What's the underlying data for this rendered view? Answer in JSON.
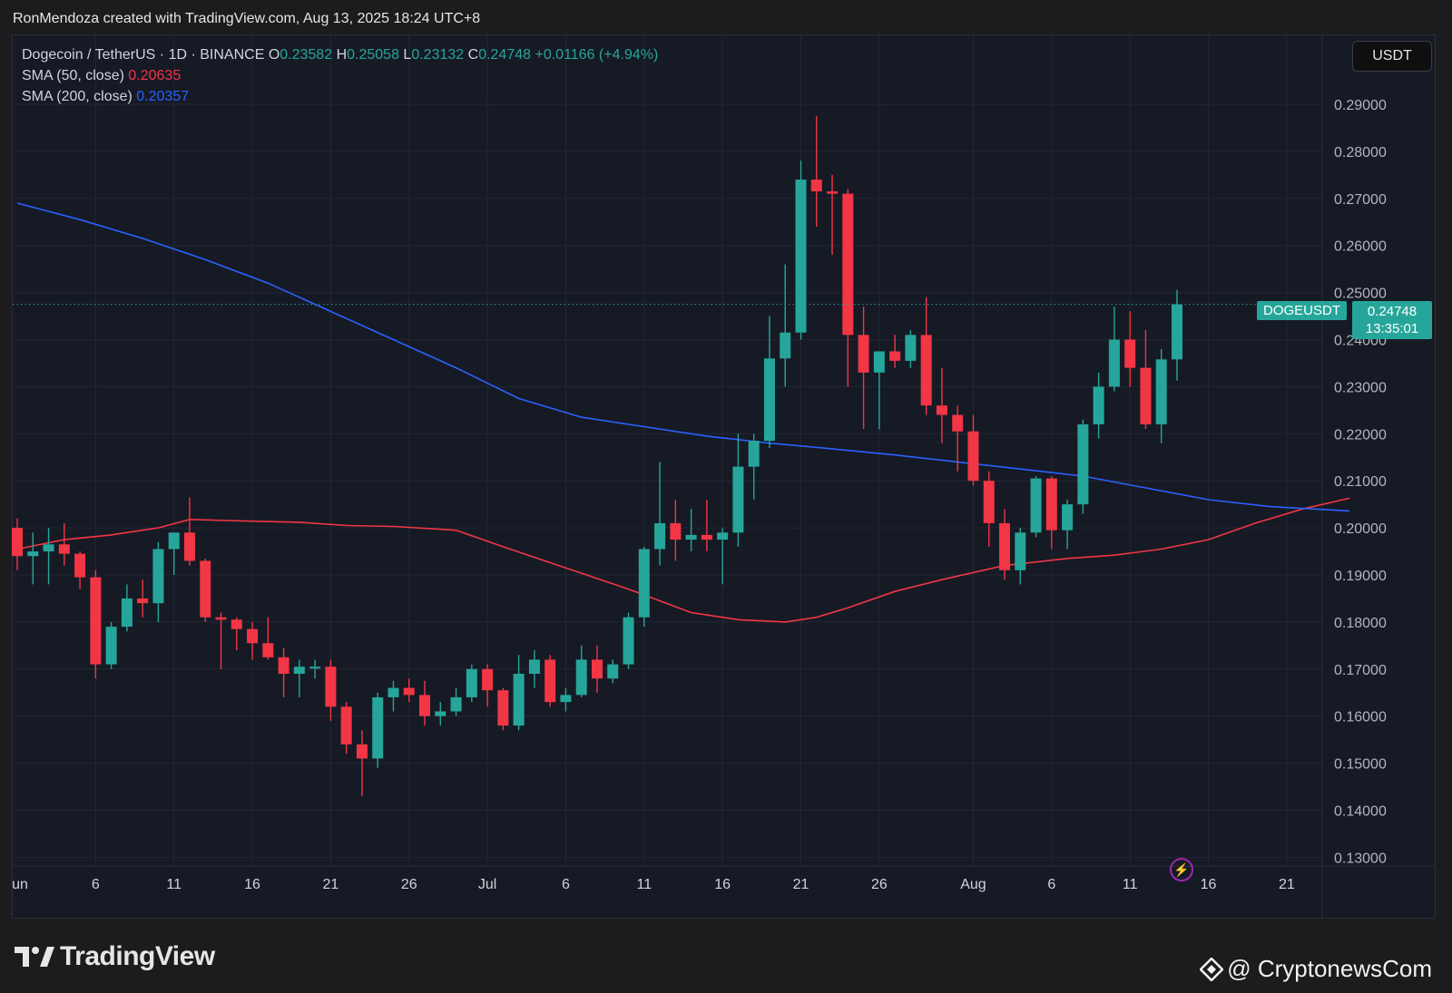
{
  "header": {
    "attribution": "RonMendoza created with TradingView.com, Aug 13, 2025 18:24 UTC+8"
  },
  "legend": {
    "symbol": "Dogecoin / TetherUS · 1D · BINANCE",
    "o_label": "O",
    "o_value": "0.23582",
    "h_label": "H",
    "h_value": "0.25058",
    "l_label": "L",
    "l_value": "0.23132",
    "c_label": "C",
    "c_value": "0.24748",
    "change": "+0.01166 (+4.94%)",
    "sma50_label": "SMA (50, close)",
    "sma50_value": "0.20635",
    "sma200_label": "SMA (200, close)",
    "sma200_value": "0.20357"
  },
  "toolbar": {
    "currency": "USDT"
  },
  "price_tag": {
    "symbol": "DOGEUSDT",
    "price": "0.24748",
    "countdown": "13:35:01"
  },
  "branding": {
    "logo_text": "TradingView",
    "watermark": "@ CryptonewsCom"
  },
  "colors": {
    "up": "#26a69a",
    "down": "#f23645",
    "sma50": "#f23645",
    "sma200": "#2962ff",
    "background": "#161a25"
  },
  "chart_data": {
    "type": "candlestick",
    "y_axis": {
      "min": 0.13,
      "max": 0.29,
      "step": 0.01,
      "tick_labels": [
        "0.29000",
        "0.28000",
        "0.27000",
        "0.26000",
        "0.25000",
        "0.24000",
        "0.23000",
        "0.22000",
        "0.21000",
        "0.20000",
        "0.19000",
        "0.18000",
        "0.17000",
        "0.16000",
        "0.15000",
        "0.14000",
        "0.13000"
      ]
    },
    "x_axis": {
      "start_date": "2025-06-01",
      "tick_labels": [
        "un",
        "6",
        "11",
        "16",
        "21",
        "26",
        "Jul",
        "6",
        "11",
        "16",
        "21",
        "26",
        "Aug",
        "6",
        "11",
        "16",
        "21"
      ]
    },
    "grid": true,
    "candles": [
      {
        "date": "Jun 1",
        "o": 0.2,
        "h": 0.202,
        "l": 0.191,
        "c": 0.194
      },
      {
        "date": "Jun 2",
        "o": 0.194,
        "h": 0.199,
        "l": 0.188,
        "c": 0.195
      },
      {
        "date": "Jun 3",
        "o": 0.195,
        "h": 0.2,
        "l": 0.188,
        "c": 0.1965
      },
      {
        "date": "Jun 4",
        "o": 0.1965,
        "h": 0.201,
        "l": 0.192,
        "c": 0.1945
      },
      {
        "date": "Jun 5",
        "o": 0.1945,
        "h": 0.195,
        "l": 0.187,
        "c": 0.1895
      },
      {
        "date": "Jun 6",
        "o": 0.1895,
        "h": 0.191,
        "l": 0.168,
        "c": 0.171
      },
      {
        "date": "Jun 7",
        "o": 0.171,
        "h": 0.18,
        "l": 0.17,
        "c": 0.179
      },
      {
        "date": "Jun 8",
        "o": 0.179,
        "h": 0.188,
        "l": 0.178,
        "c": 0.185
      },
      {
        "date": "Jun 9",
        "o": 0.185,
        "h": 0.189,
        "l": 0.181,
        "c": 0.184
      },
      {
        "date": "Jun 10",
        "o": 0.184,
        "h": 0.197,
        "l": 0.18,
        "c": 0.1955
      },
      {
        "date": "Jun 11",
        "o": 0.1955,
        "h": 0.199,
        "l": 0.19,
        "c": 0.199
      },
      {
        "date": "Jun 12",
        "o": 0.199,
        "h": 0.2065,
        "l": 0.192,
        "c": 0.193
      },
      {
        "date": "Jun 13",
        "o": 0.193,
        "h": 0.1935,
        "l": 0.18,
        "c": 0.181
      },
      {
        "date": "Jun 14",
        "o": 0.181,
        "h": 0.182,
        "l": 0.17,
        "c": 0.1805
      },
      {
        "date": "Jun 15",
        "o": 0.1805,
        "h": 0.181,
        "l": 0.174,
        "c": 0.1785
      },
      {
        "date": "Jun 16",
        "o": 0.1785,
        "h": 0.18,
        "l": 0.172,
        "c": 0.1755
      },
      {
        "date": "Jun 17",
        "o": 0.1755,
        "h": 0.181,
        "l": 0.172,
        "c": 0.1725
      },
      {
        "date": "Jun 18",
        "o": 0.1725,
        "h": 0.1745,
        "l": 0.164,
        "c": 0.169
      },
      {
        "date": "Jun 19",
        "o": 0.169,
        "h": 0.172,
        "l": 0.164,
        "c": 0.1705
      },
      {
        "date": "Jun 20",
        "o": 0.1705,
        "h": 0.172,
        "l": 0.168,
        "c": 0.1705
      },
      {
        "date": "Jun 21",
        "o": 0.1705,
        "h": 0.172,
        "l": 0.159,
        "c": 0.162
      },
      {
        "date": "Jun 22",
        "o": 0.162,
        "h": 0.163,
        "l": 0.152,
        "c": 0.154
      },
      {
        "date": "Jun 23",
        "o": 0.154,
        "h": 0.157,
        "l": 0.143,
        "c": 0.151
      },
      {
        "date": "Jun 24",
        "o": 0.151,
        "h": 0.165,
        "l": 0.149,
        "c": 0.164
      },
      {
        "date": "Jun 25",
        "o": 0.164,
        "h": 0.1675,
        "l": 0.161,
        "c": 0.166
      },
      {
        "date": "Jun 26",
        "o": 0.166,
        "h": 0.168,
        "l": 0.163,
        "c": 0.1645
      },
      {
        "date": "Jun 27",
        "o": 0.1645,
        "h": 0.1675,
        "l": 0.158,
        "c": 0.16
      },
      {
        "date": "Jun 28",
        "o": 0.16,
        "h": 0.163,
        "l": 0.158,
        "c": 0.161
      },
      {
        "date": "Jun 29",
        "o": 0.161,
        "h": 0.166,
        "l": 0.16,
        "c": 0.164
      },
      {
        "date": "Jun 30",
        "o": 0.164,
        "h": 0.171,
        "l": 0.163,
        "c": 0.17
      },
      {
        "date": "Jul 1",
        "o": 0.17,
        "h": 0.171,
        "l": 0.162,
        "c": 0.1655
      },
      {
        "date": "Jul 2",
        "o": 0.1655,
        "h": 0.166,
        "l": 0.157,
        "c": 0.158
      },
      {
        "date": "Jul 3",
        "o": 0.158,
        "h": 0.173,
        "l": 0.157,
        "c": 0.169
      },
      {
        "date": "Jul 4",
        "o": 0.169,
        "h": 0.174,
        "l": 0.166,
        "c": 0.172
      },
      {
        "date": "Jul 5",
        "o": 0.172,
        "h": 0.173,
        "l": 0.162,
        "c": 0.163
      },
      {
        "date": "Jul 6",
        "o": 0.163,
        "h": 0.166,
        "l": 0.161,
        "c": 0.1645
      },
      {
        "date": "Jul 7",
        "o": 0.1645,
        "h": 0.175,
        "l": 0.164,
        "c": 0.172
      },
      {
        "date": "Jul 8",
        "o": 0.172,
        "h": 0.175,
        "l": 0.165,
        "c": 0.168
      },
      {
        "date": "Jul 9",
        "o": 0.168,
        "h": 0.172,
        "l": 0.167,
        "c": 0.171
      },
      {
        "date": "Jul 10",
        "o": 0.171,
        "h": 0.182,
        "l": 0.17,
        "c": 0.181
      },
      {
        "date": "Jul 11",
        "o": 0.181,
        "h": 0.196,
        "l": 0.179,
        "c": 0.1955
      },
      {
        "date": "Jul 12",
        "o": 0.1955,
        "h": 0.214,
        "l": 0.192,
        "c": 0.201
      },
      {
        "date": "Jul 13",
        "o": 0.201,
        "h": 0.206,
        "l": 0.193,
        "c": 0.1975
      },
      {
        "date": "Jul 14",
        "o": 0.1975,
        "h": 0.204,
        "l": 0.195,
        "c": 0.1985
      },
      {
        "date": "Jul 15",
        "o": 0.1985,
        "h": 0.206,
        "l": 0.195,
        "c": 0.1975
      },
      {
        "date": "Jul 16",
        "o": 0.1975,
        "h": 0.2,
        "l": 0.188,
        "c": 0.199
      },
      {
        "date": "Jul 17",
        "o": 0.199,
        "h": 0.22,
        "l": 0.196,
        "c": 0.213
      },
      {
        "date": "Jul 18",
        "o": 0.213,
        "h": 0.22,
        "l": 0.206,
        "c": 0.2185
      },
      {
        "date": "Jul 19",
        "o": 0.2185,
        "h": 0.245,
        "l": 0.217,
        "c": 0.236
      },
      {
        "date": "Jul 20",
        "o": 0.236,
        "h": 0.256,
        "l": 0.23,
        "c": 0.2415
      },
      {
        "date": "Jul 21",
        "o": 0.2415,
        "h": 0.278,
        "l": 0.24,
        "c": 0.274
      },
      {
        "date": "Jul 22",
        "o": 0.274,
        "h": 0.2875,
        "l": 0.264,
        "c": 0.2715
      },
      {
        "date": "Jul 23",
        "o": 0.2715,
        "h": 0.275,
        "l": 0.258,
        "c": 0.271
      },
      {
        "date": "Jul 24",
        "o": 0.271,
        "h": 0.272,
        "l": 0.23,
        "c": 0.241
      },
      {
        "date": "Jul 25",
        "o": 0.241,
        "h": 0.247,
        "l": 0.221,
        "c": 0.233
      },
      {
        "date": "Jul 26",
        "o": 0.233,
        "h": 0.237,
        "l": 0.221,
        "c": 0.2375
      },
      {
        "date": "Jul 27",
        "o": 0.2375,
        "h": 0.241,
        "l": 0.234,
        "c": 0.2355
      },
      {
        "date": "Jul 28",
        "o": 0.2355,
        "h": 0.242,
        "l": 0.234,
        "c": 0.241
      },
      {
        "date": "Jul 29",
        "o": 0.241,
        "h": 0.249,
        "l": 0.224,
        "c": 0.226
      },
      {
        "date": "Jul 30",
        "o": 0.226,
        "h": 0.234,
        "l": 0.218,
        "c": 0.224
      },
      {
        "date": "Jul 31",
        "o": 0.224,
        "h": 0.226,
        "l": 0.212,
        "c": 0.2205
      },
      {
        "date": "Aug 1",
        "o": 0.2205,
        "h": 0.224,
        "l": 0.209,
        "c": 0.21
      },
      {
        "date": "Aug 2",
        "o": 0.21,
        "h": 0.212,
        "l": 0.196,
        "c": 0.201
      },
      {
        "date": "Aug 3",
        "o": 0.201,
        "h": 0.204,
        "l": 0.189,
        "c": 0.191
      },
      {
        "date": "Aug 4",
        "o": 0.191,
        "h": 0.2,
        "l": 0.188,
        "c": 0.199
      },
      {
        "date": "Aug 5",
        "o": 0.199,
        "h": 0.211,
        "l": 0.198,
        "c": 0.2105
      },
      {
        "date": "Aug 6",
        "o": 0.2105,
        "h": 0.211,
        "l": 0.1955,
        "c": 0.1995
      },
      {
        "date": "Aug 7",
        "o": 0.1995,
        "h": 0.206,
        "l": 0.1955,
        "c": 0.205
      },
      {
        "date": "Aug 8",
        "o": 0.205,
        "h": 0.223,
        "l": 0.203,
        "c": 0.222
      },
      {
        "date": "Aug 9",
        "o": 0.222,
        "h": 0.233,
        "l": 0.219,
        "c": 0.23
      },
      {
        "date": "Aug 10",
        "o": 0.23,
        "h": 0.247,
        "l": 0.229,
        "c": 0.24
      },
      {
        "date": "Aug 11",
        "o": 0.24,
        "h": 0.246,
        "l": 0.23,
        "c": 0.234
      },
      {
        "date": "Aug 12",
        "o": 0.234,
        "h": 0.242,
        "l": 0.221,
        "c": 0.222
      },
      {
        "date": "Aug 13",
        "o": 0.222,
        "h": 0.238,
        "l": 0.218,
        "c": 0.2358
      },
      {
        "date": "Aug 14",
        "o": 0.2358,
        "h": 0.2506,
        "l": 0.2313,
        "c": 0.2475
      }
    ],
    "sma50": [
      [
        0,
        0.1955
      ],
      [
        3,
        0.1975
      ],
      [
        6,
        0.1985
      ],
      [
        9,
        0.2
      ],
      [
        11,
        0.2018
      ],
      [
        14,
        0.2015
      ],
      [
        18,
        0.2012
      ],
      [
        21,
        0.2005
      ],
      [
        24,
        0.2003
      ],
      [
        28,
        0.1995
      ],
      [
        31,
        0.196
      ],
      [
        35,
        0.1915
      ],
      [
        39,
        0.187
      ],
      [
        43,
        0.182
      ],
      [
        46,
        0.1805
      ],
      [
        49,
        0.18
      ],
      [
        51,
        0.181
      ],
      [
        53,
        0.183
      ],
      [
        56,
        0.1865
      ],
      [
        59,
        0.189
      ],
      [
        63,
        0.192
      ],
      [
        67,
        0.1935
      ],
      [
        70,
        0.1942
      ],
      [
        73,
        0.1955
      ],
      [
        76,
        0.1975
      ],
      [
        79,
        0.201
      ],
      [
        82,
        0.204
      ],
      [
        85,
        0.2063
      ]
    ],
    "sma200": [
      [
        0,
        0.269
      ],
      [
        4,
        0.2655
      ],
      [
        8,
        0.2615
      ],
      [
        12,
        0.257
      ],
      [
        16,
        0.252
      ],
      [
        20,
        0.246
      ],
      [
        24,
        0.24
      ],
      [
        28,
        0.234
      ],
      [
        32,
        0.2275
      ],
      [
        36,
        0.2235
      ],
      [
        40,
        0.2215
      ],
      [
        44,
        0.2195
      ],
      [
        48,
        0.218
      ],
      [
        52,
        0.2168
      ],
      [
        56,
        0.2155
      ],
      [
        60,
        0.214
      ],
      [
        64,
        0.2125
      ],
      [
        68,
        0.211
      ],
      [
        72,
        0.2085
      ],
      [
        76,
        0.206
      ],
      [
        80,
        0.2045
      ],
      [
        85,
        0.2036
      ]
    ],
    "last_price": 0.24748
  }
}
